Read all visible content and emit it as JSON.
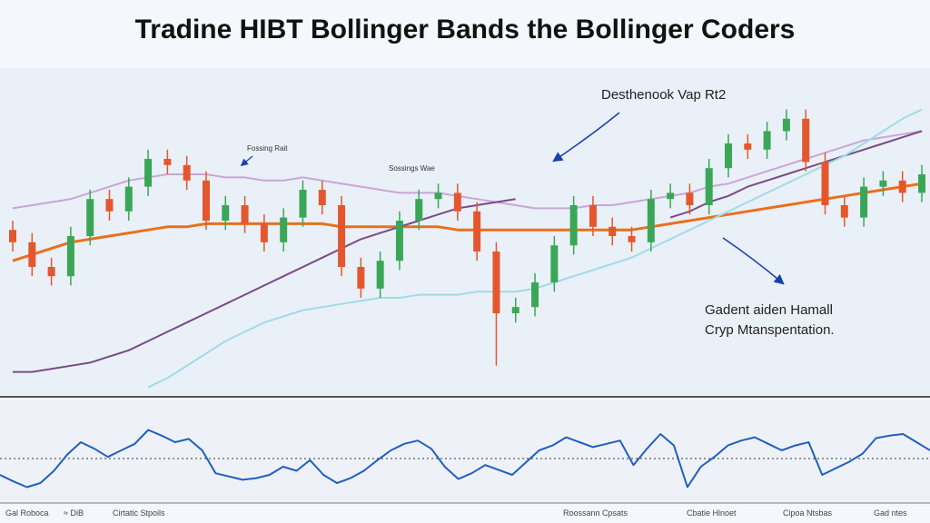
{
  "title": "Tradine HIBT Bollinger Bands the Bollinger Coders",
  "annotations": [
    "Desthenook Vap Rt2",
    "Fossing Rait",
    "Sossings Wae",
    "Gadent aiden Hamall",
    "Cryp Mtanspentation."
  ],
  "footer": [
    "Gal Roboca",
    "≈ DiB",
    "Cirtatic Stpoils",
    "Roossann Cpsats",
    "Cbatie Hlnoet",
    "Cipoa Ntsbas",
    "Gad ntes"
  ],
  "chart_data": [
    {
      "type": "candlestick",
      "ylim": [
        0,
        100
      ],
      "up_color": "#3aa757",
      "down_color": "#e4572e",
      "open": [
        52,
        48,
        40,
        37,
        50,
        62,
        58,
        66,
        75,
        73,
        68,
        55,
        60,
        54,
        48,
        56,
        65,
        60,
        40,
        33,
        42,
        55,
        62,
        64,
        58,
        45,
        25,
        27,
        35,
        47,
        60,
        53,
        50,
        48,
        62,
        64,
        60,
        72,
        80,
        78,
        84,
        88,
        74,
        60,
        56,
        66,
        68,
        64
      ],
      "high": [
        55,
        51,
        43,
        53,
        65,
        65,
        69,
        78,
        78,
        76,
        71,
        63,
        63,
        57,
        59,
        68,
        68,
        63,
        43,
        45,
        58,
        65,
        67,
        67,
        61,
        48,
        30,
        38,
        50,
        63,
        63,
        56,
        53,
        65,
        67,
        67,
        75,
        83,
        83,
        87,
        91,
        91,
        77,
        63,
        69,
        71,
        71,
        73
      ],
      "low": [
        45,
        37,
        34,
        34,
        47,
        55,
        55,
        63,
        70,
        65,
        52,
        52,
        51,
        45,
        45,
        53,
        57,
        37,
        30,
        30,
        39,
        52,
        59,
        55,
        42,
        8,
        22,
        24,
        32,
        44,
        50,
        47,
        45,
        45,
        59,
        57,
        57,
        69,
        75,
        75,
        81,
        71,
        57,
        53,
        53,
        63,
        61,
        61
      ],
      "close": [
        48,
        40,
        37,
        50,
        62,
        58,
        66,
        75,
        73,
        68,
        55,
        60,
        54,
        48,
        56,
        65,
        60,
        40,
        33,
        42,
        55,
        62,
        64,
        58,
        45,
        25,
        27,
        35,
        47,
        60,
        53,
        50,
        48,
        62,
        64,
        60,
        72,
        80,
        78,
        84,
        88,
        74,
        60,
        56,
        66,
        68,
        64,
        70
      ],
      "series": [
        {
          "color": "#e8701e",
          "values": [
            42,
            44,
            46,
            48,
            49,
            50,
            51,
            52,
            53,
            53,
            54,
            54,
            54,
            54,
            54,
            54,
            54,
            53,
            53,
            53,
            53,
            53,
            53,
            52,
            52,
            52,
            52,
            52,
            52,
            52,
            52,
            52,
            52,
            53,
            54,
            55,
            56,
            57,
            58,
            59,
            60,
            61,
            62,
            63,
            64,
            65,
            66,
            67
          ]
        },
        {
          "color": "#c9a6d6",
          "values": [
            59,
            60,
            61,
            62,
            64,
            66,
            68,
            69,
            70,
            70,
            70,
            69,
            69,
            68,
            68,
            69,
            68,
            67,
            66,
            65,
            64,
            64,
            64,
            63,
            62,
            61,
            60,
            59,
            59,
            59,
            60,
            60,
            61,
            62,
            63,
            64,
            66,
            67,
            69,
            71,
            73,
            75,
            77,
            79,
            81,
            82,
            83,
            84
          ]
        },
        {
          "color": "#7a4a86",
          "values": [
            6,
            6,
            7,
            8,
            9,
            11,
            13,
            16,
            19,
            22,
            25,
            28,
            31,
            34,
            37,
            40,
            43,
            46,
            49,
            51,
            53,
            55,
            57,
            59,
            60,
            61,
            62,
            null,
            null,
            null,
            null,
            null,
            null,
            null,
            56,
            58,
            61,
            63,
            66,
            68,
            70,
            72,
            74,
            76,
            78,
            80,
            82,
            84
          ]
        },
        {
          "color": "#9fdbe8",
          "values": [
            null,
            null,
            null,
            null,
            null,
            null,
            null,
            1,
            4,
            8,
            12,
            16,
            19,
            22,
            24,
            26,
            27,
            28,
            29,
            30,
            30,
            31,
            31,
            31,
            32,
            32,
            32,
            33,
            35,
            37,
            39,
            41,
            43,
            46,
            49,
            52,
            55,
            58,
            61,
            64,
            67,
            70,
            73,
            76,
            80,
            84,
            88,
            91
          ]
        }
      ]
    },
    {
      "type": "line",
      "ylim": [
        0,
        100
      ],
      "color": "#1f5fbf",
      "reference": 50,
      "values": [
        30,
        22,
        15,
        20,
        35,
        55,
        70,
        62,
        52,
        60,
        68,
        85,
        78,
        70,
        74,
        60,
        32,
        28,
        24,
        26,
        30,
        40,
        35,
        48,
        30,
        20,
        26,
        35,
        48,
        60,
        68,
        72,
        62,
        40,
        25,
        32,
        42,
        36,
        30,
        45,
        60,
        66,
        76,
        70,
        64,
        68,
        72,
        42,
        62,
        80,
        66,
        15,
        40,
        52,
        66,
        72,
        76,
        68,
        60,
        66,
        70,
        30,
        38,
        46,
        56,
        75,
        78,
        80,
        70,
        60
      ]
    }
  ]
}
